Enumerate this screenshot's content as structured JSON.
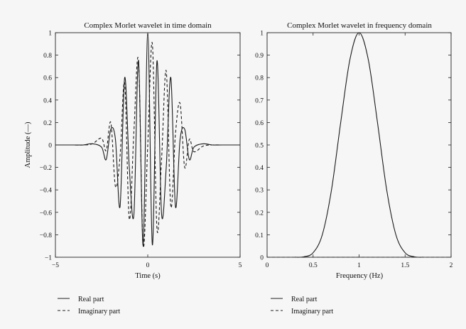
{
  "chart_data": [
    {
      "type": "line",
      "title": "Complex Morlet wavelet in time domain",
      "xlabel": "Time (s)",
      "ylabel": "Amplitude (—)",
      "xlim": [
        -5,
        5
      ],
      "ylim": [
        -1,
        1
      ],
      "xticks": [
        "−5",
        "0",
        "5"
      ],
      "yticks": [
        "−1",
        "−0.8",
        "−0.6",
        "−0.4",
        "−0.2",
        "0",
        "0.2",
        "0.4",
        "0.6",
        "0.8",
        "1"
      ],
      "grid": false,
      "legend_position": "below",
      "series": [
        {
          "name": "Real part",
          "style": "solid",
          "x": [
            -5,
            -4.5,
            -4,
            -3.5,
            -3,
            -2.5,
            -2.25,
            -2,
            -1.75,
            -1.5,
            -1.25,
            -1,
            -0.75,
            -0.5,
            -0.25,
            0,
            0.25,
            0.5,
            0.75,
            1,
            1.25,
            1.5,
            1.75,
            2,
            2.25,
            2.5,
            3,
            3.5,
            4,
            4.5,
            5
          ],
          "y": [
            0,
            0,
            0,
            0,
            0.01,
            -0.02,
            -0.13,
            0.14,
            0.05,
            -0.55,
            0.6,
            -0.2,
            -0.62,
            0.75,
            -0.89,
            1.0,
            -0.89,
            0.75,
            -0.62,
            -0.2,
            0.6,
            -0.55,
            0.05,
            0.14,
            -0.13,
            -0.02,
            0.01,
            0,
            0,
            0,
            0
          ]
        },
        {
          "name": "Imaginary part",
          "style": "dashed",
          "x": [
            -5,
            -4.5,
            -4,
            -3.5,
            -3,
            -2.5,
            -2.25,
            -2,
            -1.75,
            -1.5,
            -1.25,
            -1,
            -0.75,
            -0.5,
            -0.25,
            0,
            0.25,
            0.5,
            0.75,
            1,
            1.25,
            1.5,
            1.75,
            2,
            2.25,
            2.5,
            3,
            3.5,
            4,
            4.5,
            5
          ],
          "y": [
            0,
            0,
            0,
            0,
            0.01,
            0.06,
            -0.05,
            0.2,
            -0.37,
            -0.1,
            0.55,
            -0.66,
            0.12,
            0.75,
            -0.9,
            0.0,
            0.9,
            -0.75,
            -0.12,
            0.66,
            -0.55,
            0.1,
            0.37,
            -0.2,
            0.05,
            -0.06,
            -0.01,
            0,
            0,
            0,
            0
          ]
        }
      ]
    },
    {
      "type": "line",
      "title": "Complex Morlet wavelet in frequency domain",
      "xlabel": "Frequency (Hz)",
      "ylabel": "",
      "xlim": [
        0,
        2
      ],
      "ylim": [
        0,
        1
      ],
      "xticks": [
        "0",
        "0.5",
        "1",
        "1.5",
        "2"
      ],
      "yticks": [
        "0",
        "0.1",
        "0.2",
        "0.3",
        "0.4",
        "0.5",
        "0.6",
        "0.7",
        "0.8",
        "0.9",
        "1"
      ],
      "grid": false,
      "legend_position": "below",
      "series": [
        {
          "name": "Real part",
          "style": "solid",
          "x": [
            0.3,
            0.4,
            0.5,
            0.6,
            0.7,
            0.8,
            0.9,
            1.0,
            1.1,
            1.2,
            1.3,
            1.4,
            1.5,
            1.6,
            1.7
          ],
          "y": [
            0.0,
            0.002,
            0.02,
            0.1,
            0.3,
            0.6,
            0.88,
            1.0,
            0.88,
            0.6,
            0.3,
            0.1,
            0.02,
            0.002,
            0.0
          ]
        },
        {
          "name": "Imaginary part",
          "style": "dashed",
          "x": [
            0,
            2
          ],
          "y": [
            0,
            0
          ]
        }
      ]
    }
  ]
}
